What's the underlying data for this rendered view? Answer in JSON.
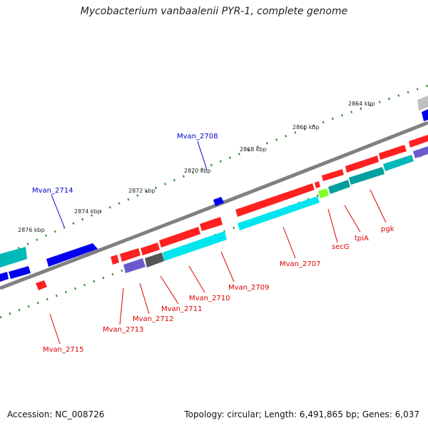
{
  "title": "Mycobacterium vanbaalenii PYR-1, complete genome",
  "footer": {
    "accession": "Accession: NC_008726",
    "summary": "Topology: circular; Length: 6,491,865 bp; Genes: 6,037"
  },
  "ticks": [
    "2864 kbp",
    "2866 kbp",
    "2868 kbp",
    "2870 kbp",
    "2872 kbp",
    "2874 kbp",
    "2876 kbp"
  ],
  "genes_top": [
    "Mvan_2708",
    "Mvan_2714"
  ],
  "genes_bottom": [
    "Mvan_2707",
    "secG",
    "tpiA",
    "pgk",
    "Mvan_2709",
    "Mvan_2710",
    "Mvan_2711",
    "Mvan_2712",
    "Mvan_2713",
    "Mvan_2715"
  ],
  "colors": {
    "forward": "#ff0000",
    "reverse": "#0000ff",
    "cyan": "#00e5ee",
    "teal": "#00a0a0",
    "slate": "#6a5acd",
    "dark_gray": "#555555",
    "green_tick": "#228b22"
  }
}
